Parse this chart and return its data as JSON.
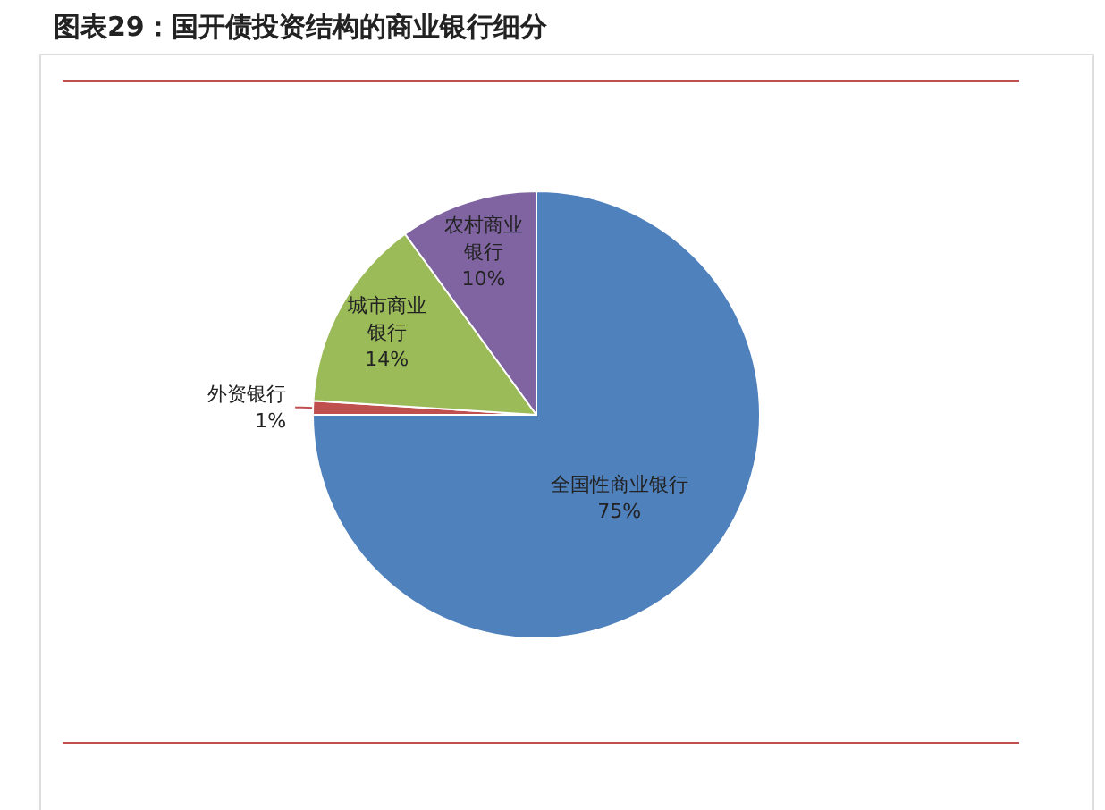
{
  "chart_data": {
    "type": "pie",
    "title": "图表29：国开债投资结构的商业银行细分",
    "categories": [
      "全国性商业银行",
      "外资银行",
      "城市商业银行",
      "农村商业银行"
    ],
    "values": [
      75,
      1,
      14,
      10
    ],
    "value_labels": [
      "75%",
      "1%",
      "14%",
      "10%"
    ],
    "colors": [
      "#4f81bd",
      "#c0504d",
      "#9bbb59",
      "#8064a2"
    ],
    "legend": false
  }
}
